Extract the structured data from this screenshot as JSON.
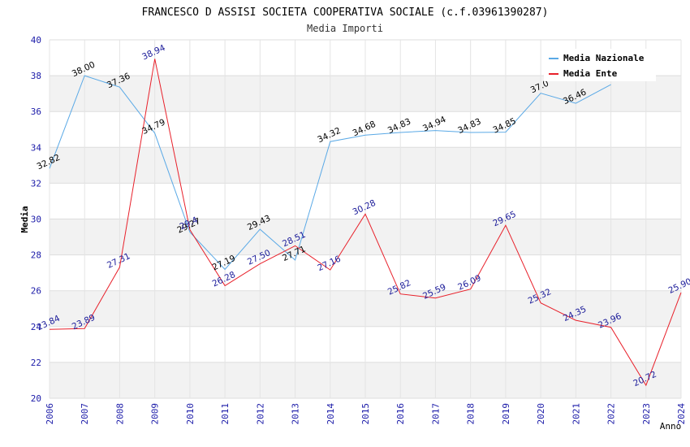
{
  "chart_data": {
    "type": "line",
    "title": "FRANCESCO D ASSISI SOCIETA COOPERATIVA SOCIALE (c.f.03961390287)",
    "subtitle": "Media Importi",
    "xlabel": "Anno",
    "ylabel": "Media",
    "ylim": [
      20,
      40
    ],
    "yticks": [
      20,
      22,
      24,
      26,
      28,
      30,
      32,
      34,
      36,
      38,
      40
    ],
    "grid": true,
    "legend_position": "top-right",
    "categories": [
      "2006",
      "2007",
      "2008",
      "2009",
      "2010",
      "2011",
      "2012",
      "2013",
      "2014",
      "2015",
      "2016",
      "2017",
      "2018",
      "2019",
      "2020",
      "2021",
      "2022",
      "2023",
      "2024"
    ],
    "series": [
      {
        "name": "Media Nazionale",
        "color": "#5aa9e6",
        "label_color": "#000000",
        "values": [
          32.82,
          38.0,
          37.36,
          34.79,
          29.27,
          27.19,
          29.43,
          27.71,
          34.32,
          34.68,
          34.83,
          34.94,
          34.83,
          34.85,
          37.02,
          36.46,
          37.5,
          null,
          null
        ],
        "labels": [
          "32.82",
          "38.00",
          "37.36",
          "34.79",
          "29.27",
          "27.19",
          "29.43",
          "27.71",
          "34.32",
          "34.68",
          "34.83",
          "34.94",
          "34.83",
          "34.85",
          "37.0",
          "36.46",
          "",
          "",
          ""
        ]
      },
      {
        "name": "Media Ente",
        "color": "#e8202a",
        "label_color": "#1a1a99",
        "values": [
          23.84,
          23.89,
          27.31,
          38.94,
          29.4,
          26.28,
          27.5,
          28.51,
          27.16,
          30.28,
          25.82,
          25.59,
          26.09,
          29.65,
          25.32,
          24.35,
          23.96,
          20.72,
          25.9
        ],
        "labels": [
          "23.84",
          "23.89",
          "27.31",
          "38.94",
          "29.4",
          "26.28",
          "27.50",
          "28.51",
          "27.16",
          "30.28",
          "25.82",
          "25.59",
          "26.09",
          "29.65",
          "25.32",
          "24.35",
          "23.96",
          "20.72",
          "25.90"
        ]
      }
    ]
  }
}
